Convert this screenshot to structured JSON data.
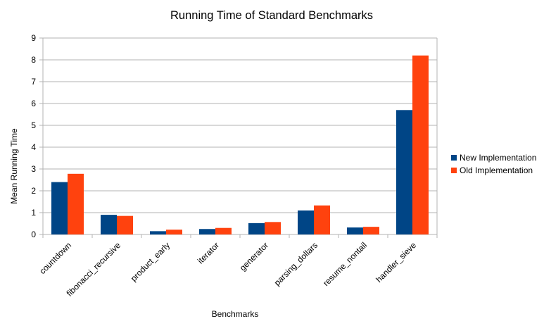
{
  "chart_data": {
    "type": "bar",
    "title": "Running Time of Standard Benchmarks",
    "xlabel": "Benchmarks",
    "ylabel": "Mean Running Time",
    "ylim": [
      0,
      9
    ],
    "yticks": [
      0,
      1,
      2,
      3,
      4,
      5,
      6,
      7,
      8,
      9
    ],
    "grid": "horizontal",
    "legend_position": "right",
    "categories": [
      "countdown",
      "fibonacci_recursive",
      "product_early",
      "iterator",
      "generator",
      "parsing_dollars",
      "resume_nontail",
      "handler_sieve"
    ],
    "series": [
      {
        "name": "New Implementation",
        "color": "#004586",
        "values": [
          2.4,
          0.9,
          0.15,
          0.25,
          0.52,
          1.1,
          0.32,
          5.7
        ]
      },
      {
        "name": "Old Implementation",
        "color": "#ff420e",
        "values": [
          2.78,
          0.85,
          0.22,
          0.3,
          0.57,
          1.33,
          0.35,
          8.2
        ]
      }
    ]
  }
}
